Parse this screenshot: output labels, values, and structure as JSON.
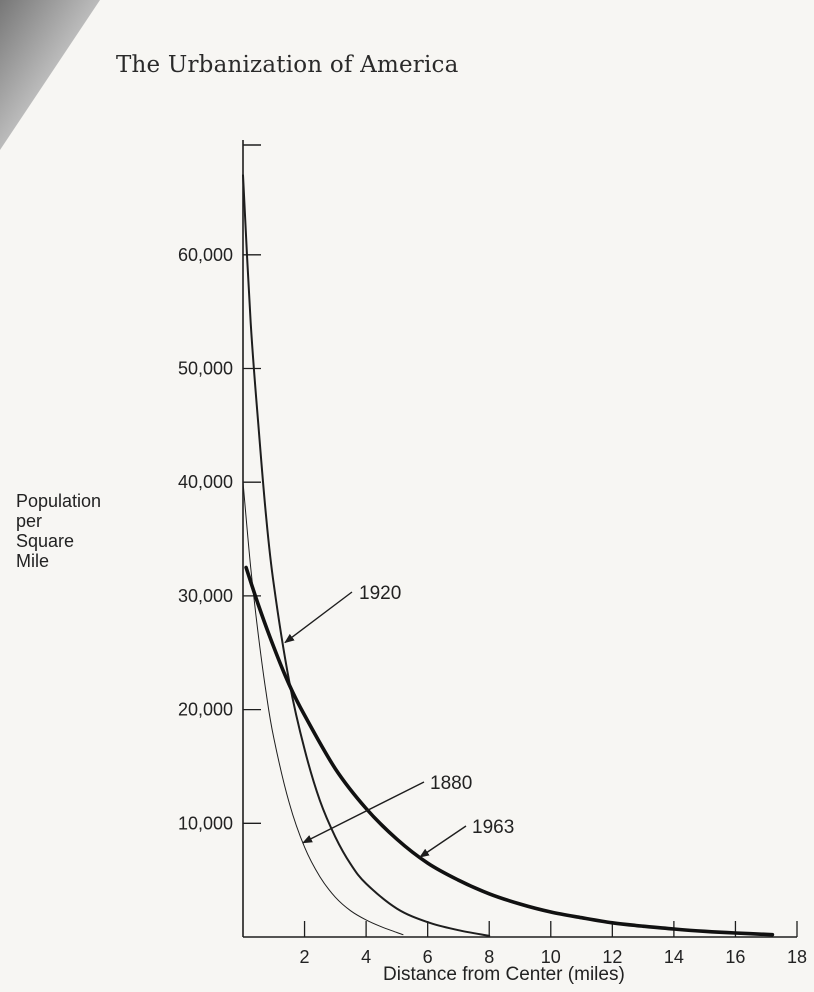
{
  "page": {
    "running_head": "The Urbanization of America"
  },
  "chart_data": {
    "type": "line",
    "title": "",
    "xlabel": "Distance from Center (miles)",
    "ylabel": [
      "Population",
      "per",
      "Square",
      "Mile"
    ],
    "xlim": [
      0,
      18
    ],
    "ylim": [
      0,
      70000
    ],
    "x_ticks": [
      2,
      4,
      6,
      8,
      10,
      12,
      14,
      16,
      18
    ],
    "x_tick_labels": [
      "2",
      "4",
      "6",
      "8",
      "10",
      "12",
      "14",
      "16",
      "18"
    ],
    "y_ticks": [
      10000,
      20000,
      30000,
      40000,
      50000,
      60000
    ],
    "y_tick_labels": [
      "10,000",
      "20,000",
      "30,000",
      "40,000",
      "50,000",
      "60,000"
    ],
    "grid": false,
    "series": [
      {
        "name": "1920",
        "x": [
          0,
          0.25,
          0.5,
          0.75,
          1,
          1.5,
          2,
          2.5,
          3,
          3.5,
          4,
          5,
          6,
          7,
          8
        ],
        "values": [
          67000,
          54000,
          45000,
          37000,
          31000,
          22500,
          16500,
          12000,
          8800,
          6400,
          4700,
          2500,
          1300,
          600,
          100
        ],
        "color": "#1e1e1e",
        "weight": "medium"
      },
      {
        "name": "1880",
        "x": [
          0,
          0.25,
          0.5,
          0.75,
          1,
          1.5,
          2,
          2.5,
          3,
          3.5,
          4,
          4.5,
          5,
          5.2
        ],
        "values": [
          40000,
          32500,
          26500,
          21500,
          17500,
          11800,
          7900,
          5300,
          3500,
          2300,
          1500,
          900,
          400,
          200
        ],
        "color": "#1e1e1e",
        "weight": "thin"
      },
      {
        "name": "1963",
        "x": [
          0.1,
          0.5,
          1,
          1.5,
          2,
          3,
          4,
          5,
          6,
          7,
          8,
          9,
          10,
          11,
          12,
          13,
          14,
          15,
          16,
          17.2
        ],
        "values": [
          32500,
          29200,
          25500,
          22200,
          19500,
          14800,
          11300,
          8600,
          6500,
          5000,
          3800,
          2900,
          2200,
          1700,
          1250,
          950,
          700,
          500,
          350,
          200
        ],
        "color": "#111111",
        "weight": "thick"
      }
    ],
    "annotations": [
      {
        "text": "1920",
        "points_to": "1920"
      },
      {
        "text": "1880",
        "points_to": "1880"
      },
      {
        "text": "1963",
        "points_to": "1963"
      }
    ]
  }
}
